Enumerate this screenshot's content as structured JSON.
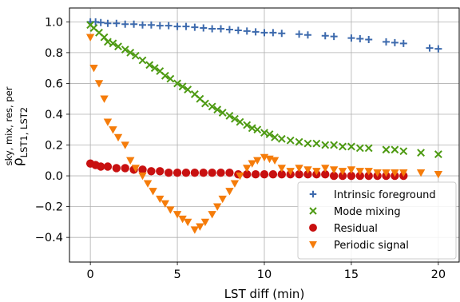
{
  "chart_data": {
    "type": "scatter",
    "title": "",
    "xlabel": "LST diff (min)",
    "ylabel": {
      "symbol": "ρ",
      "superscript": "sky, mix, res, per",
      "subscript": "LST1, LST2"
    },
    "xlim": [
      -1.2,
      21.2
    ],
    "ylim": [
      -0.56,
      1.09
    ],
    "x_ticks": [
      0,
      5,
      10,
      15,
      20
    ],
    "y_ticks": [
      -0.4,
      -0.2,
      0.0,
      0.2,
      0.4,
      0.6,
      0.8,
      1.0
    ],
    "x_tick_labels": [
      "0",
      "5",
      "10",
      "15",
      "20"
    ],
    "y_tick_labels": [
      "−0.4",
      "−0.2",
      "0.0",
      "0.2",
      "0.4",
      "0.6",
      "0.8",
      "1.0"
    ],
    "grid": true,
    "legend_position": "lower-right",
    "series": [
      {
        "name": "Intrinsic foreground",
        "marker": "plus",
        "color": "#3d6aad",
        "points": [
          [
            0.0,
            1.0
          ],
          [
            0.3,
            1.0
          ],
          [
            0.6,
            0.995
          ],
          [
            1.0,
            0.99
          ],
          [
            1.5,
            0.99
          ],
          [
            2.0,
            0.985
          ],
          [
            2.5,
            0.985
          ],
          [
            3.0,
            0.98
          ],
          [
            3.5,
            0.98
          ],
          [
            4.0,
            0.975
          ],
          [
            4.5,
            0.975
          ],
          [
            5.0,
            0.97
          ],
          [
            5.5,
            0.97
          ],
          [
            6.0,
            0.965
          ],
          [
            6.5,
            0.96
          ],
          [
            7.0,
            0.955
          ],
          [
            7.5,
            0.955
          ],
          [
            8.0,
            0.95
          ],
          [
            8.5,
            0.945
          ],
          [
            9.0,
            0.94
          ],
          [
            9.5,
            0.935
          ],
          [
            10.0,
            0.93
          ],
          [
            10.5,
            0.93
          ],
          [
            11.0,
            0.925
          ],
          [
            12.0,
            0.92
          ],
          [
            12.5,
            0.915
          ],
          [
            13.5,
            0.91
          ],
          [
            14.0,
            0.905
          ],
          [
            15.0,
            0.895
          ],
          [
            15.5,
            0.89
          ],
          [
            16.0,
            0.885
          ],
          [
            17.0,
            0.87
          ],
          [
            17.5,
            0.865
          ],
          [
            18.0,
            0.86
          ],
          [
            19.5,
            0.83
          ],
          [
            20.0,
            0.825
          ]
        ]
      },
      {
        "name": "Mode mixing",
        "marker": "x",
        "color": "#4d9a12",
        "points": [
          [
            0.0,
            0.98
          ],
          [
            0.2,
            0.96
          ],
          [
            0.5,
            0.93
          ],
          [
            0.8,
            0.9
          ],
          [
            1.0,
            0.87
          ],
          [
            1.3,
            0.86
          ],
          [
            1.6,
            0.84
          ],
          [
            2.0,
            0.82
          ],
          [
            2.3,
            0.8
          ],
          [
            2.6,
            0.78
          ],
          [
            3.0,
            0.75
          ],
          [
            3.4,
            0.72
          ],
          [
            3.7,
            0.7
          ],
          [
            4.0,
            0.68
          ],
          [
            4.3,
            0.65
          ],
          [
            4.6,
            0.63
          ],
          [
            5.0,
            0.6
          ],
          [
            5.3,
            0.58
          ],
          [
            5.6,
            0.56
          ],
          [
            6.0,
            0.53
          ],
          [
            6.3,
            0.5
          ],
          [
            6.6,
            0.47
          ],
          [
            7.0,
            0.45
          ],
          [
            7.3,
            0.43
          ],
          [
            7.6,
            0.41
          ],
          [
            8.0,
            0.39
          ],
          [
            8.3,
            0.37
          ],
          [
            8.6,
            0.35
          ],
          [
            9.0,
            0.33
          ],
          [
            9.3,
            0.31
          ],
          [
            9.6,
            0.3
          ],
          [
            10.0,
            0.28
          ],
          [
            10.3,
            0.27
          ],
          [
            10.6,
            0.25
          ],
          [
            11.0,
            0.24
          ],
          [
            11.5,
            0.23
          ],
          [
            12.0,
            0.22
          ],
          [
            12.5,
            0.21
          ],
          [
            13.0,
            0.21
          ],
          [
            13.5,
            0.2
          ],
          [
            14.0,
            0.2
          ],
          [
            14.5,
            0.19
          ],
          [
            15.0,
            0.19
          ],
          [
            15.5,
            0.18
          ],
          [
            16.0,
            0.18
          ],
          [
            17.0,
            0.17
          ],
          [
            17.5,
            0.17
          ],
          [
            18.0,
            0.16
          ],
          [
            19.0,
            0.15
          ],
          [
            20.0,
            0.14
          ]
        ]
      },
      {
        "name": "Residual",
        "marker": "circle",
        "color": "#c81010",
        "points": [
          [
            0.0,
            0.08
          ],
          [
            0.3,
            0.07
          ],
          [
            0.6,
            0.06
          ],
          [
            1.0,
            0.06
          ],
          [
            1.5,
            0.05
          ],
          [
            2.0,
            0.05
          ],
          [
            2.5,
            0.04
          ],
          [
            3.0,
            0.04
          ],
          [
            3.5,
            0.03
          ],
          [
            4.0,
            0.03
          ],
          [
            4.5,
            0.02
          ],
          [
            5.0,
            0.02
          ],
          [
            5.5,
            0.02
          ],
          [
            6.0,
            0.02
          ],
          [
            6.5,
            0.02
          ],
          [
            7.0,
            0.02
          ],
          [
            7.5,
            0.02
          ],
          [
            8.0,
            0.02
          ],
          [
            8.5,
            0.01
          ],
          [
            9.0,
            0.01
          ],
          [
            9.5,
            0.01
          ],
          [
            10.0,
            0.01
          ],
          [
            10.5,
            0.01
          ],
          [
            11.0,
            0.01
          ],
          [
            11.5,
            0.01
          ],
          [
            12.0,
            0.01
          ],
          [
            12.5,
            0.01
          ],
          [
            13.0,
            0.01
          ],
          [
            13.5,
            0.01
          ],
          [
            14.0,
            0.0
          ],
          [
            14.5,
            0.0
          ],
          [
            15.0,
            0.0
          ],
          [
            15.5,
            0.0
          ],
          [
            16.0,
            0.0
          ],
          [
            16.5,
            0.0
          ],
          [
            17.0,
            0.0
          ],
          [
            17.5,
            0.0
          ],
          [
            18.0,
            0.0
          ]
        ]
      },
      {
        "name": "Periodic signal",
        "marker": "triangle-down",
        "color": "#f57c0a",
        "points": [
          [
            0.0,
            0.9
          ],
          [
            0.2,
            0.7
          ],
          [
            0.5,
            0.6
          ],
          [
            0.8,
            0.5
          ],
          [
            1.0,
            0.35
          ],
          [
            1.3,
            0.3
          ],
          [
            1.6,
            0.25
          ],
          [
            2.0,
            0.2
          ],
          [
            2.3,
            0.1
          ],
          [
            2.6,
            0.05
          ],
          [
            3.0,
            0.0
          ],
          [
            3.3,
            -0.05
          ],
          [
            3.6,
            -0.1
          ],
          [
            4.0,
            -0.15
          ],
          [
            4.3,
            -0.18
          ],
          [
            4.6,
            -0.22
          ],
          [
            5.0,
            -0.25
          ],
          [
            5.3,
            -0.28
          ],
          [
            5.6,
            -0.3
          ],
          [
            6.0,
            -0.35
          ],
          [
            6.3,
            -0.33
          ],
          [
            6.6,
            -0.3
          ],
          [
            7.0,
            -0.25
          ],
          [
            7.3,
            -0.2
          ],
          [
            7.6,
            -0.15
          ],
          [
            8.0,
            -0.1
          ],
          [
            8.3,
            -0.05
          ],
          [
            8.6,
            0.0
          ],
          [
            9.0,
            0.05
          ],
          [
            9.3,
            0.08
          ],
          [
            9.6,
            0.1
          ],
          [
            10.0,
            0.12
          ],
          [
            10.3,
            0.11
          ],
          [
            10.6,
            0.1
          ],
          [
            11.0,
            0.05
          ],
          [
            11.5,
            0.03
          ],
          [
            12.0,
            0.05
          ],
          [
            12.5,
            0.04
          ],
          [
            13.0,
            0.03
          ],
          [
            13.5,
            0.05
          ],
          [
            14.0,
            0.04
          ],
          [
            14.5,
            0.03
          ],
          [
            15.0,
            0.04
          ],
          [
            15.5,
            0.03
          ],
          [
            16.0,
            0.03
          ],
          [
            16.5,
            0.02
          ],
          [
            17.0,
            0.02
          ],
          [
            17.5,
            0.02
          ],
          [
            18.0,
            0.02
          ],
          [
            19.0,
            0.02
          ],
          [
            20.0,
            0.01
          ]
        ]
      }
    ]
  }
}
